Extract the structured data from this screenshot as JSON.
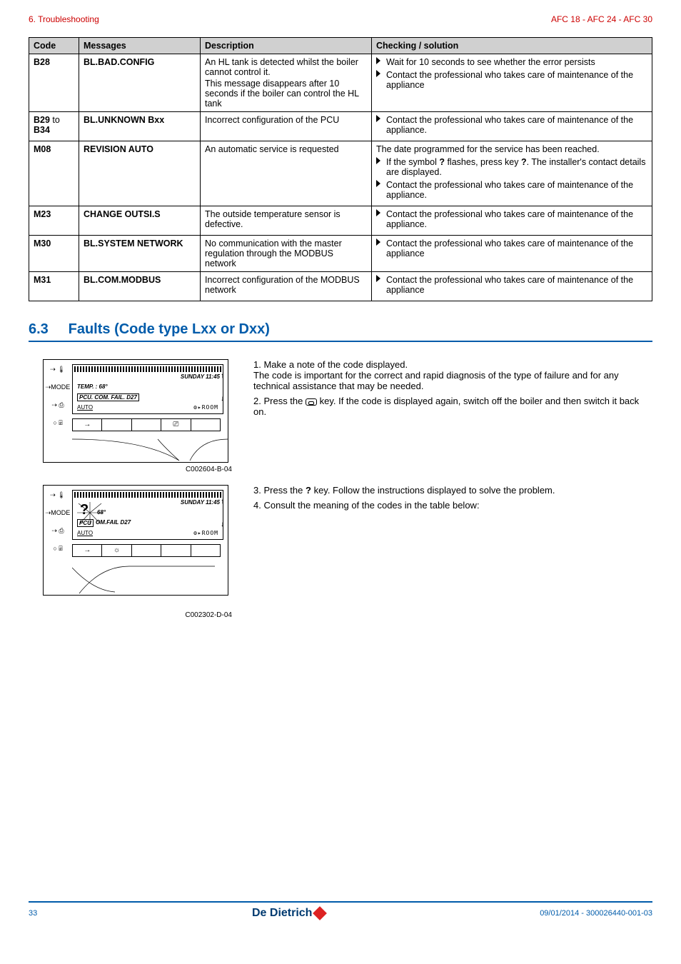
{
  "header": {
    "left": "6.  Troubleshooting",
    "right": "AFC 18 - AFC 24 - AFC 30"
  },
  "table": {
    "headers": {
      "code": "Code",
      "messages": "Messages",
      "description": "Description",
      "checking": "Checking / solution"
    },
    "rows": [
      {
        "code": "B28",
        "msg": "BL.BAD.CONFIG",
        "desc_lines": [
          "An HL tank is detected whilst the boiler cannot control it.",
          "This message disappears after 10 seconds if the boiler can control the HL tank"
        ],
        "check_bullets": [
          "Wait for 10 seconds to see whether the error persists",
          "Contact the professional who takes care of maintenance of the appliance"
        ]
      },
      {
        "code": "B29 to B34",
        "msg": "BL.UNKNOWN Bxx",
        "desc_lines": [
          "Incorrect configuration of the PCU"
        ],
        "check_bullets": [
          "Contact the professional who takes care of maintenance of the appliance."
        ]
      },
      {
        "code": "M08",
        "msg": "REVISION AUTO",
        "desc_lines": [
          "An automatic service is requested"
        ],
        "check_pre": "The date programmed for the service has been reached.",
        "check_bullets": [
          "If the symbol ? flashes, press key ?. The installer's contact details are displayed.",
          "Contact the professional who takes care of maintenance of the appliance."
        ]
      },
      {
        "code": "M23",
        "msg": "CHANGE OUTSI.S",
        "desc_lines": [
          "The outside temperature sensor is defective."
        ],
        "check_bullets": [
          "Contact the professional who takes care of maintenance of the appliance."
        ]
      },
      {
        "code": "M30",
        "msg": "BL.SYSTEM NETWORK",
        "desc_lines": [
          "No communication with the master regulation through the MODBUS network"
        ],
        "check_bullets": [
          "Contact the professional who takes care of maintenance of the appliance"
        ]
      },
      {
        "code": "M31",
        "msg": "BL.COM.MODBUS",
        "desc_lines": [
          "Incorrect configuration of the MODBUS network"
        ],
        "check_bullets": [
          "Contact the professional who takes care of maintenance of the appliance"
        ]
      }
    ]
  },
  "section": {
    "number": "6.3",
    "title": "Faults (Code type Lxx or Dxx)"
  },
  "steps_a": [
    {
      "n": "1.",
      "t": "Make a note of the code displayed.",
      "sub": "The code is important for the correct and rapid diagnosis of the type of failure and for any technical assistance that may be needed."
    },
    {
      "n": "2.",
      "t_pre": "Press the ",
      "t_post": " key. If the code is displayed again, switch off the boiler and then switch it back on."
    }
  ],
  "steps_b": [
    {
      "n": "3.",
      "t": "Press the ? key. Follow the instructions displayed to solve the problem."
    },
    {
      "n": "4.",
      "t": "Consult the meaning of the codes in the table below:"
    }
  ],
  "lcd1": {
    "sunday": "SUNDAY 11:45",
    "temp": "TEMP. :  68°",
    "pcu": "PCU. COM. FAIL.  D27",
    "auto": "AUTO",
    "room": "⚙▸ROOM",
    "caption": "C002604-B-04",
    "mode": "MODE"
  },
  "lcd2": {
    "sunday": "SUNDAY 11:45",
    "temp68": "68°",
    "pcu": "OM.FAIL D27",
    "pcl": "PCU",
    "auto": "AUTO",
    "room": "⚙▸ROOM",
    "caption": "C002302-D-04",
    "mode": "MODE",
    "qmark": "?"
  },
  "footer": {
    "page": "33",
    "logo": "De Dietrich",
    "right": "09/01/2014 - 300026440-001-03"
  }
}
